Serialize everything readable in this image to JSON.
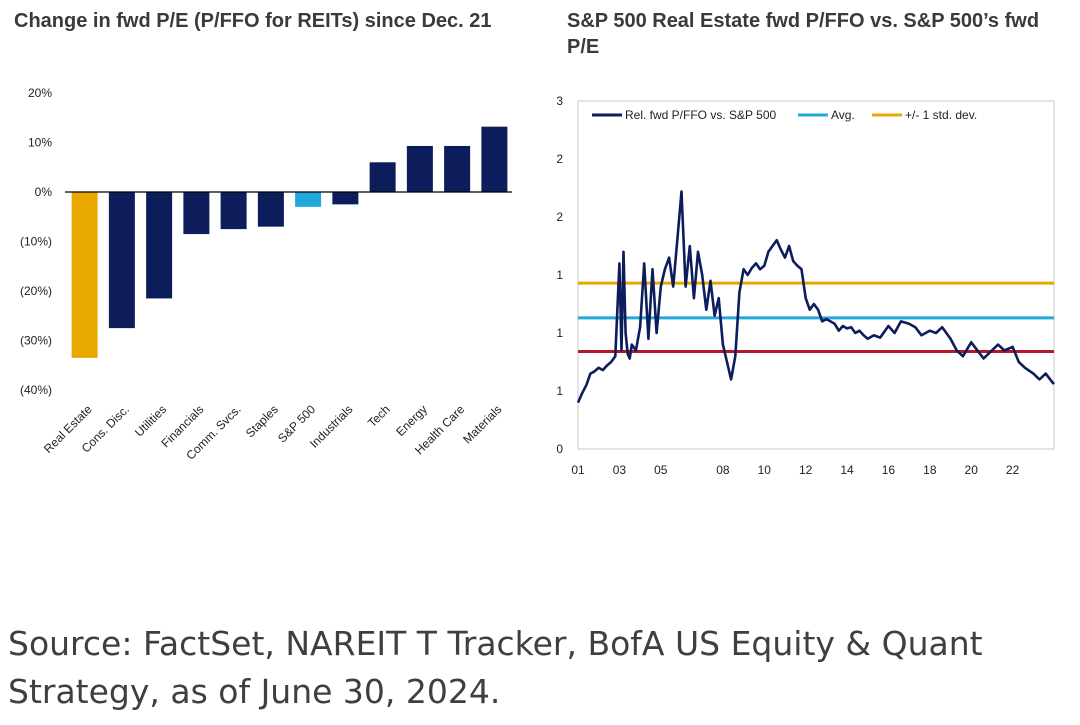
{
  "colors": {
    "navy": "#0d1d5c",
    "gold": "#e8a800",
    "cyan": "#22a8dc",
    "red": "#b0182c",
    "text": "#3a3a3a"
  },
  "source_note": "Source: FactSet, NAREIT T Tracker, BofA US Equity & Quant Strategy, as of June 30, 2024.",
  "chart_data": [
    {
      "type": "bar",
      "title": "Change in fwd P/E (P/FFO for REITs) since Dec. 21",
      "categories": [
        "Real Estate",
        "Cons. Disc.",
        "Utilities",
        "Financials",
        "Comm. Svcs.",
        "Staples",
        "S&P 500",
        "Industrials",
        "Tech",
        "Energy",
        "Health Care",
        "Materials"
      ],
      "values": [
        -33.5,
        -27.5,
        -21.5,
        -8.5,
        -7.5,
        -7,
        -3,
        -2.5,
        6,
        9.3,
        9.3,
        13.2
      ],
      "bar_colors": [
        "#e8a800",
        "#0d1d5c",
        "#0d1d5c",
        "#0d1d5c",
        "#0d1d5c",
        "#0d1d5c",
        "#22a8dc",
        "#0d1d5c",
        "#0d1d5c",
        "#0d1d5c",
        "#0d1d5c",
        "#0d1d5c"
      ],
      "ylim": [
        -40,
        20
      ],
      "yticks": [
        20,
        10,
        0,
        -10,
        -20,
        -30,
        -40
      ],
      "ytick_labels": [
        "20%",
        "10%",
        "0%",
        "(10%)",
        "(20%)",
        "(30%)",
        "(40%)"
      ],
      "grid": false
    },
    {
      "type": "line",
      "title": "S&P 500 Real Estate fwd P/FFO vs. S&P 500’s fwd P/E",
      "ylim": [
        0,
        3
      ],
      "yticks": [
        0,
        0.5,
        1,
        1.5,
        2,
        2.5,
        3
      ],
      "ytick_labels": [
        "0",
        "1",
        "1",
        "1",
        "2",
        "2",
        "3"
      ],
      "xlim": [
        2001,
        2024
      ],
      "xticks": [
        2001,
        2003,
        2005,
        2008,
        2010,
        2012,
        2014,
        2016,
        2018,
        2020,
        2022
      ],
      "xtick_labels": [
        "01",
        "03",
        "05",
        "08",
        "10",
        "12",
        "14",
        "16",
        "18",
        "20",
        "22"
      ],
      "legend_position": "top",
      "legend": [
        "Rel. fwd P/FFO vs. S&P 500",
        "Avg.",
        "+/- 1 std. dev."
      ],
      "series": [
        {
          "name": "Rel. fwd P/FFO vs. S&P 500",
          "color": "#0d1d5c",
          "x": [
            2001.0,
            2001.2,
            2001.4,
            2001.6,
            2001.8,
            2002.0,
            2002.2,
            2002.4,
            2002.6,
            2002.8,
            2003.0,
            2003.1,
            2003.2,
            2003.3,
            2003.4,
            2003.5,
            2003.6,
            2003.8,
            2004.0,
            2004.2,
            2004.4,
            2004.6,
            2004.8,
            2005.0,
            2005.2,
            2005.4,
            2005.6,
            2005.8,
            2006.0,
            2006.2,
            2006.4,
            2006.6,
            2006.8,
            2007.0,
            2007.2,
            2007.4,
            2007.6,
            2007.8,
            2008.0,
            2008.2,
            2008.4,
            2008.6,
            2008.8,
            2009.0,
            2009.2,
            2009.4,
            2009.6,
            2009.8,
            2010.0,
            2010.2,
            2010.4,
            2010.6,
            2010.8,
            2011.0,
            2011.2,
            2011.4,
            2011.6,
            2011.8,
            2012.0,
            2012.2,
            2012.4,
            2012.6,
            2012.8,
            2013.0,
            2013.2,
            2013.4,
            2013.6,
            2013.8,
            2014.0,
            2014.2,
            2014.4,
            2014.6,
            2014.8,
            2015.0,
            2015.3,
            2015.6,
            2016.0,
            2016.3,
            2016.6,
            2017.0,
            2017.3,
            2017.6,
            2018.0,
            2018.3,
            2018.6,
            2019.0,
            2019.3,
            2019.6,
            2020.0,
            2020.3,
            2020.6,
            2021.0,
            2021.3,
            2021.6,
            2022.0,
            2022.3,
            2022.6,
            2023.0,
            2023.3,
            2023.6,
            2023.9,
            2024.0
          ],
          "values": [
            0.4,
            0.48,
            0.55,
            0.65,
            0.67,
            0.7,
            0.68,
            0.72,
            0.75,
            0.8,
            1.6,
            0.85,
            1.7,
            1.0,
            0.82,
            0.78,
            0.9,
            0.85,
            1.05,
            1.6,
            0.95,
            1.55,
            1.0,
            1.4,
            1.55,
            1.65,
            1.4,
            1.8,
            2.22,
            1.4,
            1.75,
            1.3,
            1.7,
            1.5,
            1.2,
            1.45,
            1.15,
            1.3,
            0.9,
            0.75,
            0.6,
            0.8,
            1.35,
            1.55,
            1.5,
            1.56,
            1.6,
            1.55,
            1.58,
            1.7,
            1.75,
            1.8,
            1.72,
            1.65,
            1.75,
            1.62,
            1.58,
            1.55,
            1.3,
            1.2,
            1.25,
            1.2,
            1.1,
            1.12,
            1.1,
            1.08,
            1.02,
            1.06,
            1.04,
            1.05,
            1.0,
            1.02,
            0.98,
            0.95,
            0.98,
            0.96,
            1.06,
            1.0,
            1.1,
            1.08,
            1.05,
            0.98,
            1.02,
            1.0,
            1.05,
            0.95,
            0.85,
            0.8,
            0.92,
            0.85,
            0.78,
            0.85,
            0.9,
            0.85,
            0.88,
            0.75,
            0.7,
            0.65,
            0.6,
            0.65,
            0.58,
            0.56
          ]
        },
        {
          "name": "Avg.",
          "color": "#22a8dc",
          "constant": 1.13
        },
        {
          "name": "+/- 1 std. dev.",
          "color": "#e8a800",
          "constant": 1.43
        },
        {
          "color": "#b0182c",
          "constant": 0.84
        }
      ]
    }
  ]
}
